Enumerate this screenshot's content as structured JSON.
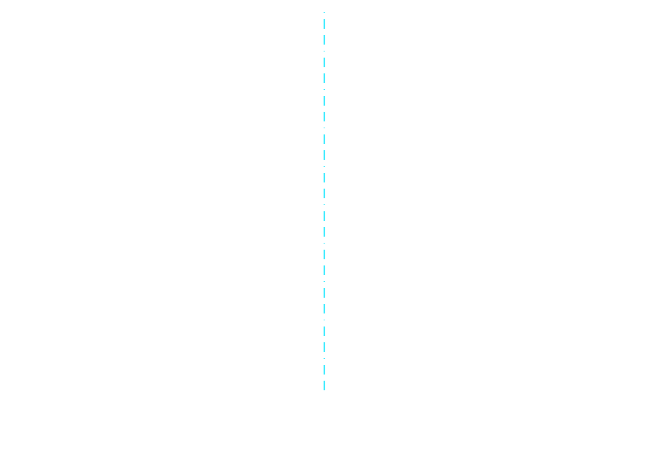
{
  "canvas": {
    "background": "#ffffff"
  },
  "guide_line": {
    "color": "#00e5ff",
    "style": "dashed"
  }
}
